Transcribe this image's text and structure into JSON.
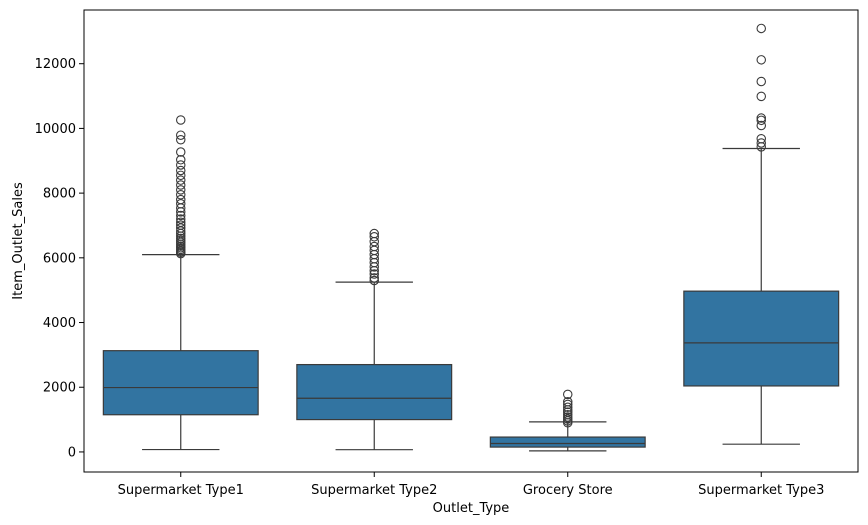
{
  "chart_data": {
    "type": "box",
    "title": "",
    "xlabel": "Outlet_Type",
    "ylabel": "Item_Outlet_Sales",
    "ylim": [
      -620,
      13660
    ],
    "yticks": [
      0,
      2000,
      4000,
      6000,
      8000,
      10000,
      12000
    ],
    "grid": false,
    "box_color": "#3274a1",
    "line_color": "#3a3a3a",
    "categories": [
      "Supermarket Type1",
      "Supermarket Type2",
      "Grocery Store",
      "Supermarket Type3"
    ],
    "boxes": [
      {
        "category": "Supermarket Type1",
        "whisker_low": 73,
        "q1": 1150,
        "median": 1990,
        "q3": 3130,
        "whisker_high": 6100,
        "outliers": [
          6130,
          6170,
          6210,
          6260,
          6310,
          6360,
          6420,
          6480,
          6540,
          6600,
          6670,
          6750,
          6830,
          6920,
          7010,
          7100,
          7200,
          7310,
          7420,
          7540,
          7670,
          7800,
          7950,
          8100,
          8250,
          8400,
          8550,
          8700,
          8870,
          9030,
          9270,
          9650,
          9790,
          10260
        ]
      },
      {
        "category": "Supermarket Type2",
        "whisker_low": 70,
        "q1": 1000,
        "median": 1660,
        "q3": 2700,
        "whisker_high": 5250,
        "outliers": [
          5300,
          5380,
          5500,
          5600,
          5720,
          5850,
          5970,
          6100,
          6230,
          6350,
          6500,
          6650,
          6750
        ]
      },
      {
        "category": "Grocery Store",
        "whisker_low": 33,
        "q1": 150,
        "median": 260,
        "q3": 460,
        "whisker_high": 930,
        "outliers": [
          900,
          960,
          1020,
          1080,
          1150,
          1230,
          1300,
          1380,
          1470,
          1550,
          1780
        ]
      },
      {
        "category": "Supermarket Type3",
        "whisker_low": 240,
        "q1": 2040,
        "median": 3370,
        "q3": 4970,
        "whisker_high": 9380,
        "outliers": [
          9430,
          9550,
          9680,
          10090,
          10250,
          10320,
          10990,
          11450,
          12120,
          13090
        ]
      }
    ]
  }
}
